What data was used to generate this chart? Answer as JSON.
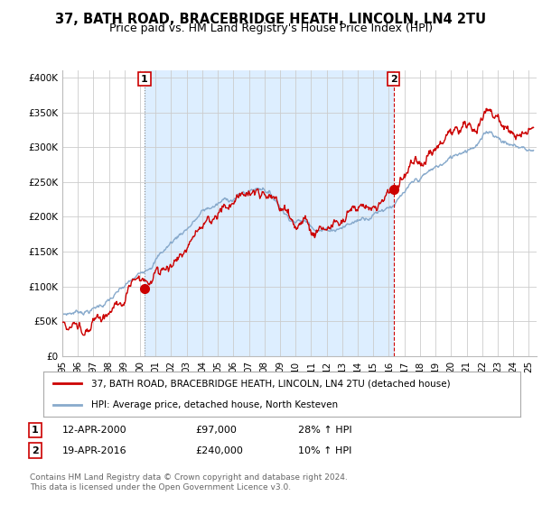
{
  "title": "37, BATH ROAD, BRACEBRIDGE HEATH, LINCOLN, LN4 2TU",
  "subtitle": "Price paid vs. HM Land Registry's House Price Index (HPI)",
  "ylabel_ticks": [
    "£0",
    "£50K",
    "£100K",
    "£150K",
    "£200K",
    "£250K",
    "£300K",
    "£350K",
    "£400K"
  ],
  "ytick_values": [
    0,
    50000,
    100000,
    150000,
    200000,
    250000,
    300000,
    350000,
    400000
  ],
  "ylim": [
    0,
    410000
  ],
  "xlim_start": 1995.0,
  "xlim_end": 2025.5,
  "marker1_x": 2000.28,
  "marker1_y": 97000,
  "marker1_label": "1",
  "marker2_x": 2016.3,
  "marker2_y": 240000,
  "marker2_label": "2",
  "legend1": "37, BATH ROAD, BRACEBRIDGE HEATH, LINCOLN, LN4 2TU (detached house)",
  "legend2": "HPI: Average price, detached house, North Kesteven",
  "footer": "Contains HM Land Registry data © Crown copyright and database right 2024.\nThis data is licensed under the Open Government Licence v3.0.",
  "line_color_red": "#cc0000",
  "line_color_blue": "#88aacc",
  "fill_color": "#ddeeff",
  "marker_box_color": "#cc0000",
  "bg_color": "#ffffff",
  "grid_color": "#cccccc"
}
